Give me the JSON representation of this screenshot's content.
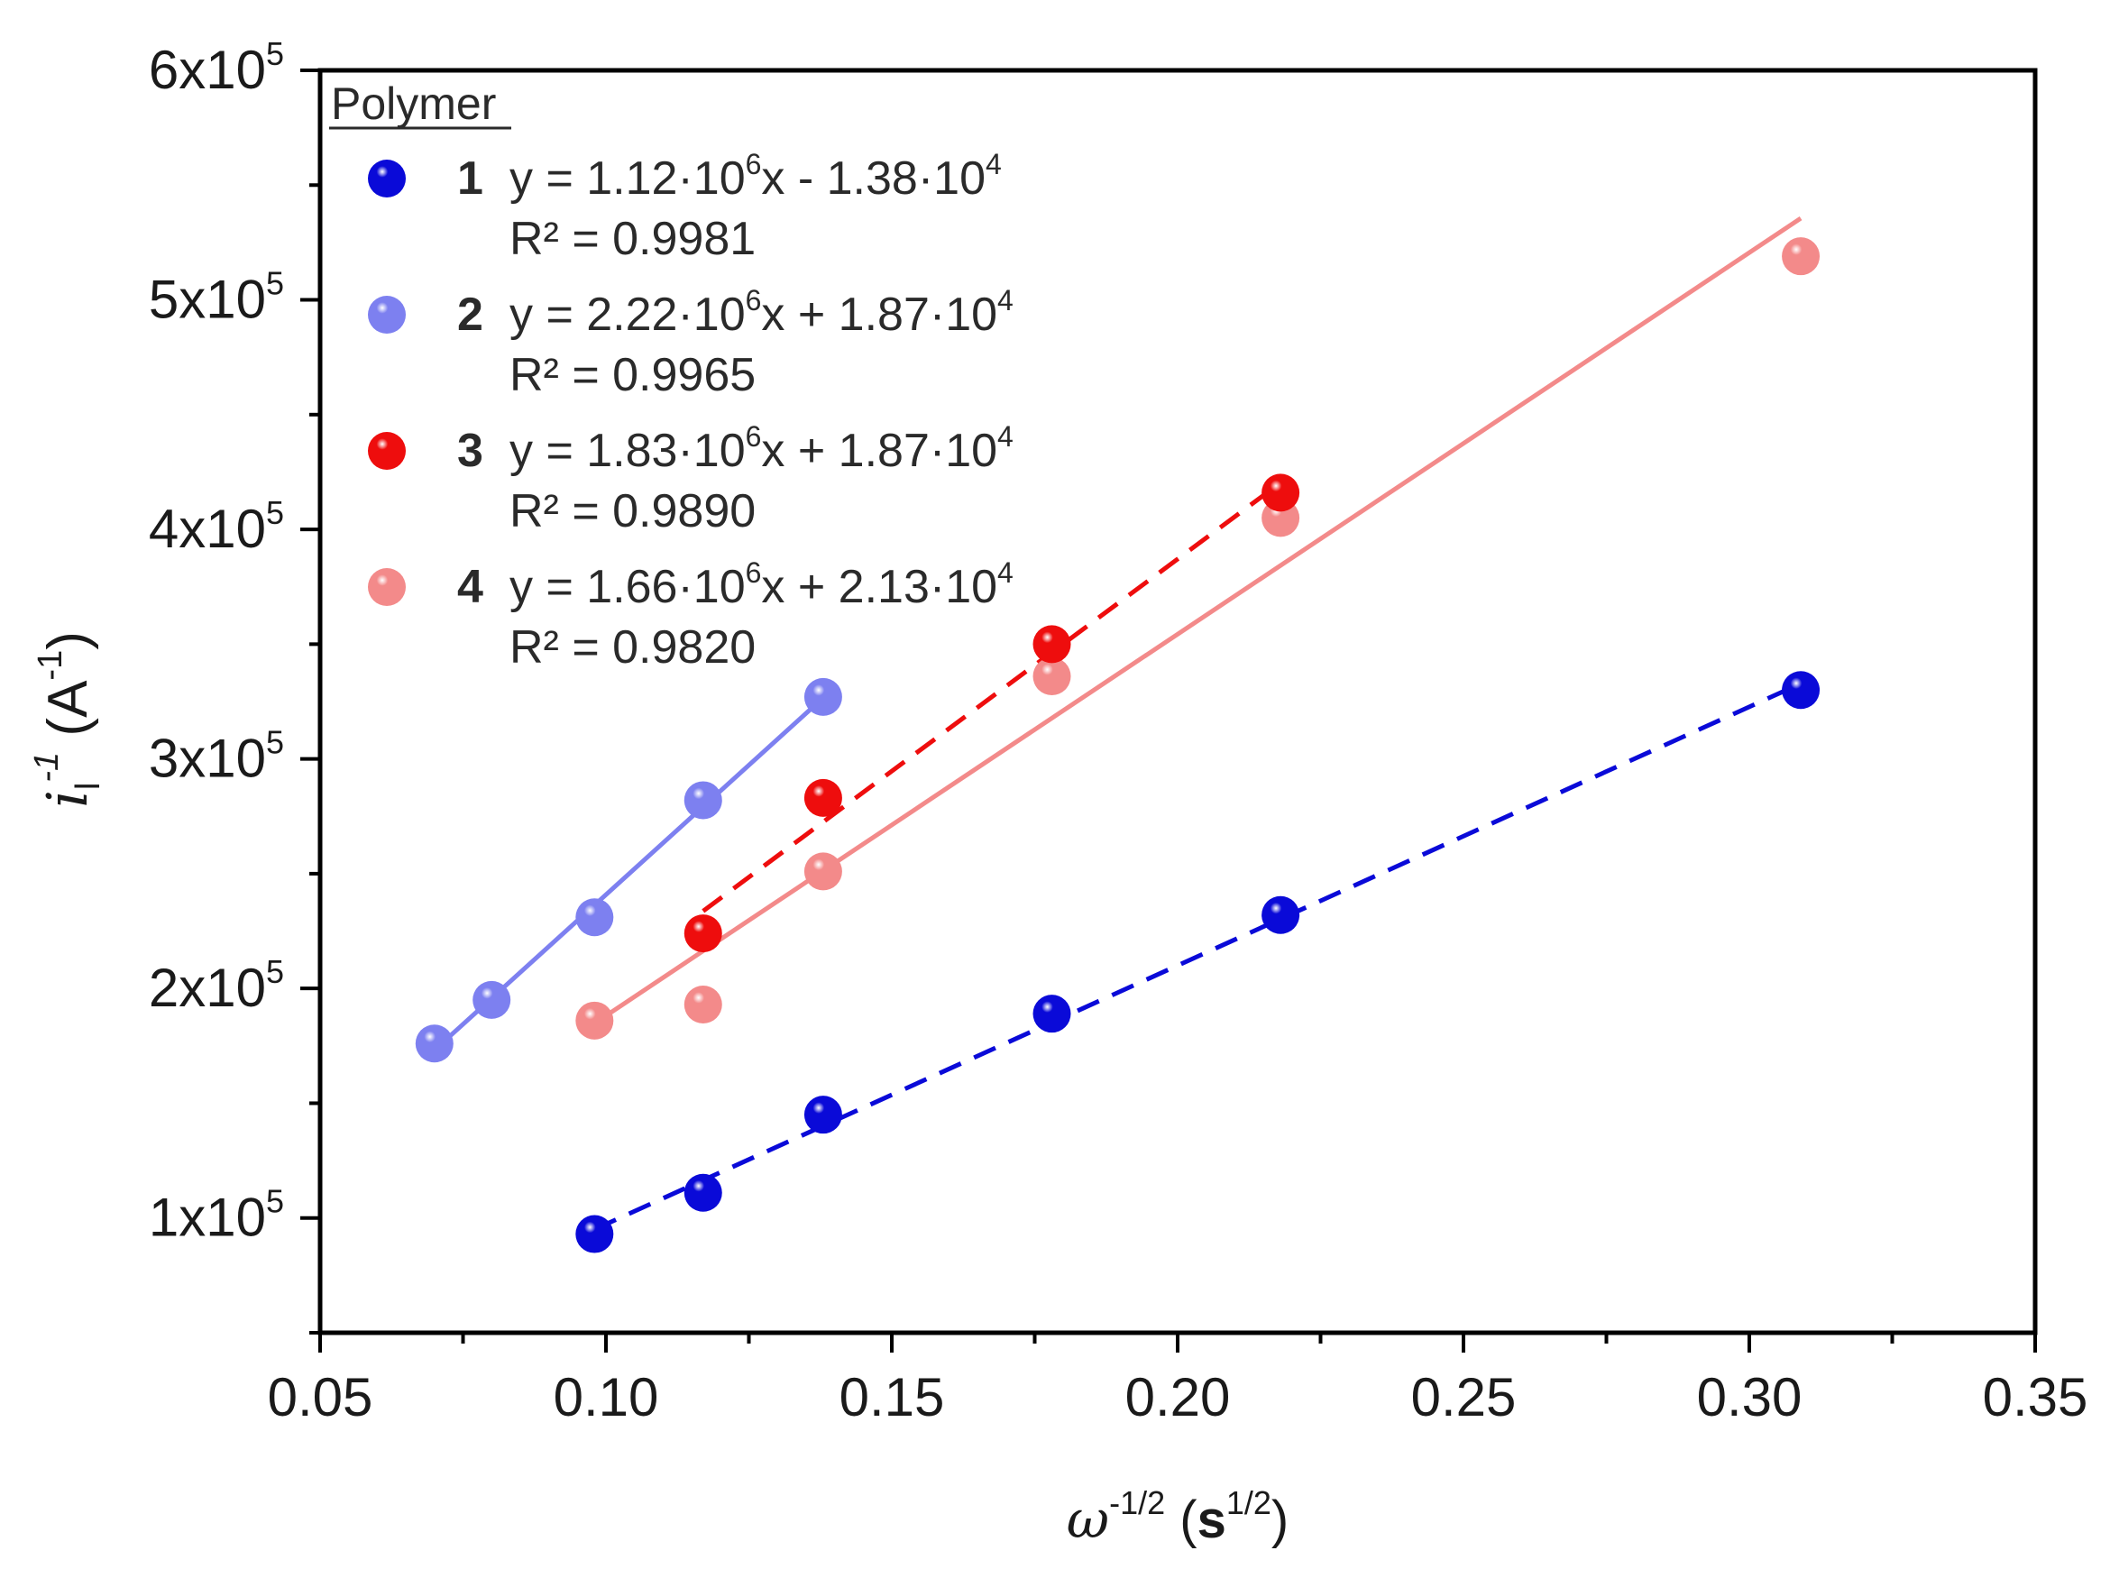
{
  "chart_data": {
    "type": "scatter",
    "title": "",
    "xlabel": {
      "symbol": "ω",
      "exp": "-1/2",
      "unit": "s",
      "unit_exp": "1/2"
    },
    "ylabel": {
      "symbol": "i",
      "sub": "l",
      "exp": "-1",
      "unit_open": "(A",
      "unit_exp": "-1",
      "unit_close": ")"
    },
    "xlim": [
      0.05,
      0.35
    ],
    "ylim": [
      50000,
      600000
    ],
    "x_ticks": [
      0.05,
      0.1,
      0.15,
      0.2,
      0.25,
      0.3,
      0.35
    ],
    "x_tick_labels": [
      "0.05",
      "0.10",
      "0.15",
      "0.20",
      "0.25",
      "0.30",
      "0.35"
    ],
    "y_ticks": [
      {
        "value": 100000,
        "mant": "1x10",
        "exp": "5"
      },
      {
        "value": 200000,
        "mant": "2x10",
        "exp": "5"
      },
      {
        "value": 300000,
        "mant": "3x10",
        "exp": "5"
      },
      {
        "value": 400000,
        "mant": "4x10",
        "exp": "5"
      },
      {
        "value": 500000,
        "mant": "5x10",
        "exp": "5"
      },
      {
        "value": 600000,
        "mant": "6x10",
        "exp": "5"
      }
    ],
    "legend": {
      "title": "Polymer",
      "position": "top-left"
    },
    "series": [
      {
        "name": "1",
        "color": "#0a0ad8",
        "line": "dashed",
        "x": [
          0.098,
          0.117,
          0.138,
          0.178,
          0.218,
          0.309
        ],
        "y": [
          93000,
          111000,
          145000,
          189000,
          232000,
          330000
        ],
        "fit": {
          "x": [
            0.098,
            0.309
          ]
        },
        "equation": {
          "pre": "y = 1.12·10",
          "exp1": "6",
          "mid": "x - 1.38·10",
          "exp2": "4"
        },
        "r2": "R² = 0.9981"
      },
      {
        "name": "2",
        "color": "#7d80f0",
        "line": "solid",
        "x": [
          0.07,
          0.08,
          0.098,
          0.117,
          0.138
        ],
        "y": [
          176000,
          195000,
          231000,
          282000,
          327000
        ],
        "fit": {
          "x": [
            0.07,
            0.137
          ]
        },
        "equation": {
          "pre": "y = 2.22·10",
          "exp1": "6",
          "mid": "x + 1.87·10",
          "exp2": "4"
        },
        "r2": "R² = 0.9965"
      },
      {
        "name": "3",
        "color": "#ee0d0d",
        "line": "dashed",
        "x": [
          0.117,
          0.138,
          0.178,
          0.218
        ],
        "y": [
          224000,
          283000,
          350000,
          416000
        ],
        "fit": {
          "x": [
            0.117,
            0.218
          ]
        },
        "equation": {
          "pre": "y = 1.83·10",
          "exp1": "6",
          "mid": "x + 1.87·10",
          "exp2": "4"
        },
        "r2": "R² = 0.9890"
      },
      {
        "name": "4",
        "color": "#f38a8a",
        "line": "solid",
        "x": [
          0.098,
          0.117,
          0.138,
          0.178,
          0.218,
          0.309
        ],
        "y": [
          186000,
          193000,
          251000,
          336000,
          405000,
          519000
        ],
        "fit": {
          "x": [
            0.098,
            0.309
          ]
        },
        "equation": {
          "pre": "y = 1.66·10",
          "exp1": "6",
          "mid": "x + 2.13·10",
          "exp2": "4"
        },
        "r2": "R² = 0.9820"
      }
    ]
  }
}
